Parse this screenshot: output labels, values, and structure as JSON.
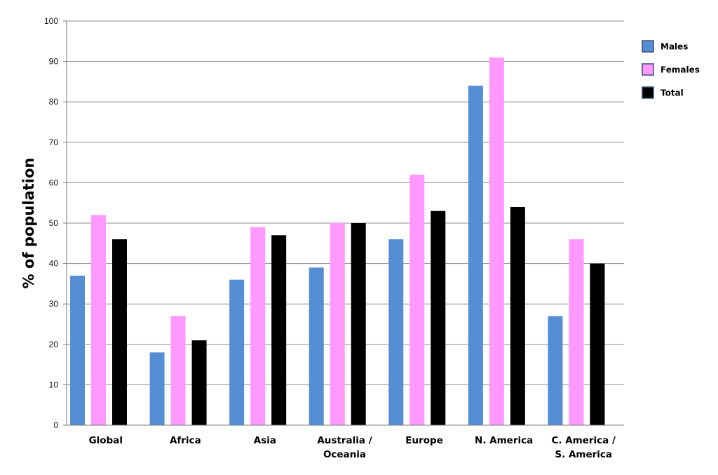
{
  "chart_data": {
    "type": "bar",
    "title": "",
    "xlabel": "",
    "ylabel": "% of population",
    "ylim": [
      0,
      100
    ],
    "yticks": [
      0,
      10,
      20,
      30,
      40,
      50,
      60,
      70,
      80,
      90,
      100
    ],
    "grid": true,
    "legend_position": "top-right",
    "categories": [
      [
        "Global"
      ],
      [
        "Africa"
      ],
      [
        "Asia"
      ],
      [
        "Australia /",
        "Oceania"
      ],
      [
        "Europe"
      ],
      [
        "N. America"
      ],
      [
        "C. America /",
        "S. America"
      ]
    ],
    "series": [
      {
        "name": "Males",
        "color": "#558ed5",
        "values": [
          37,
          18,
          36,
          39,
          46,
          84,
          27
        ]
      },
      {
        "name": "Females",
        "color": "#ff99ff",
        "values": [
          52,
          27,
          49,
          50,
          62,
          91,
          46
        ]
      },
      {
        "name": "Total",
        "color": "#000000",
        "values": [
          46,
          21,
          47,
          50,
          53,
          54,
          40
        ]
      }
    ]
  }
}
